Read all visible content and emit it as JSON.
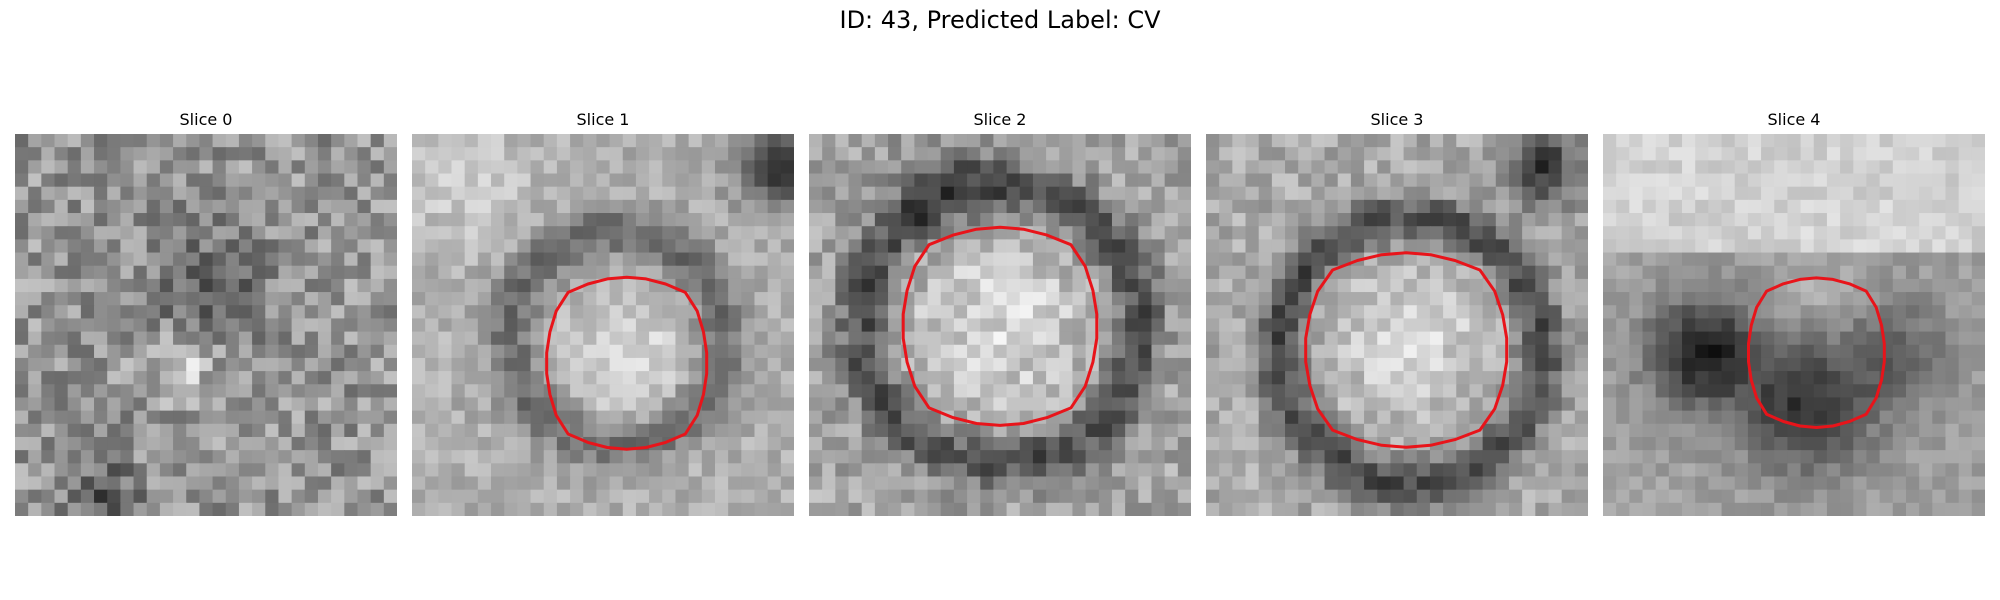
{
  "figure": {
    "title": "ID: 43, Predicted Label: CV"
  },
  "slices": [
    {
      "title": "Slice 0",
      "has_outline": false
    },
    {
      "title": "Slice 1",
      "has_outline": true
    },
    {
      "title": "Slice 2",
      "has_outline": true
    },
    {
      "title": "Slice 3",
      "has_outline": true
    },
    {
      "title": "Slice 4",
      "has_outline": true
    }
  ],
  "colors": {
    "outline": "#e8141a",
    "background": "#ffffff"
  }
}
